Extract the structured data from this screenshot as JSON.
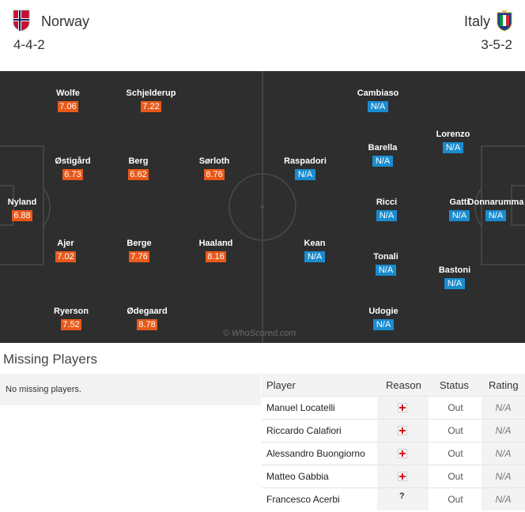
{
  "home": {
    "name": "Norway",
    "formation": "4-4-2",
    "players": [
      {
        "name": "Wolfe",
        "rating": "7.06"
      },
      {
        "name": "Schjelderup",
        "rating": "7.22"
      },
      {
        "name": "Østigård",
        "rating": "6.73"
      },
      {
        "name": "Berg",
        "rating": "6.62"
      },
      {
        "name": "Sørloth",
        "rating": "8.76"
      },
      {
        "name": "Nyland",
        "rating": "6.88"
      },
      {
        "name": "Ajer",
        "rating": "7.02"
      },
      {
        "name": "Berge",
        "rating": "7.76"
      },
      {
        "name": "Haaland",
        "rating": "8.16"
      },
      {
        "name": "Ryerson",
        "rating": "7.52"
      },
      {
        "name": "Ødegaard",
        "rating": "8.78"
      }
    ]
  },
  "away": {
    "name": "Italy",
    "formation": "3-5-2",
    "players": [
      {
        "name": "Cambiaso",
        "rating": "N/A"
      },
      {
        "name": "Lorenzo",
        "rating": "N/A"
      },
      {
        "name": "Raspadori",
        "rating": "N/A"
      },
      {
        "name": "Barella",
        "rating": "N/A"
      },
      {
        "name": "Gatti",
        "rating": "N/A"
      },
      {
        "name": "Donnarumma",
        "rating": "N/A"
      },
      {
        "name": "Ricci",
        "rating": "N/A"
      },
      {
        "name": "Kean",
        "rating": "N/A"
      },
      {
        "name": "Tonali",
        "rating": "N/A"
      },
      {
        "name": "Bastoni",
        "rating": "N/A"
      },
      {
        "name": "Udogie",
        "rating": "N/A"
      }
    ]
  },
  "watermark": "© WhoScored.com",
  "missing": {
    "title": "Missing Players",
    "home_text": "No missing players.",
    "columns": {
      "player": "Player",
      "reason": "Reason",
      "status": "Status",
      "rating": "Rating"
    },
    "rows": [
      {
        "player": "Manuel Locatelli",
        "reason": "injury",
        "status": "Out",
        "rating": "N/A"
      },
      {
        "player": "Riccardo Calafiori",
        "reason": "injury",
        "status": "Out",
        "rating": "N/A"
      },
      {
        "player": "Alessandro Buongiorno",
        "reason": "injury",
        "status": "Out",
        "rating": "N/A"
      },
      {
        "player": "Matteo Gabbia",
        "reason": "injury",
        "status": "Out",
        "rating": "N/A"
      },
      {
        "player": "Francesco Acerbi",
        "reason": "?",
        "status": "Out",
        "rating": "N/A"
      }
    ]
  },
  "colors": {
    "pitch": "#2e2e2e",
    "home_rating": "#e8591a",
    "away_rating": "#1a8ccf",
    "injury": "#d3121b"
  }
}
